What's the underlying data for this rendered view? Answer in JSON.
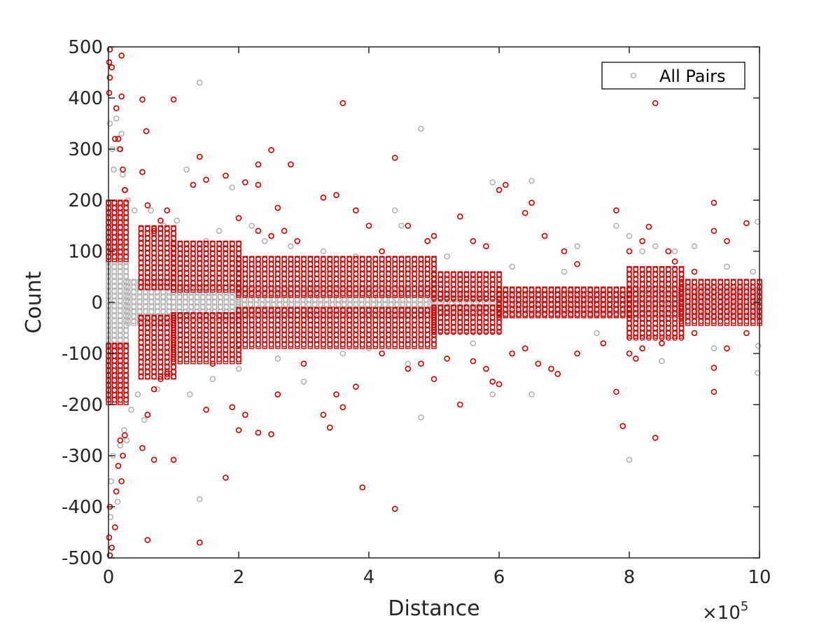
{
  "chart_data": {
    "type": "scatter",
    "title": "",
    "xlabel": "Distance",
    "ylabel": "Count",
    "x_multiplier_base": "×10",
    "x_multiplier_exp": "5",
    "xlim": [
      0,
      1000000
    ],
    "ylim": [
      -500,
      500
    ],
    "x_ticks": [
      {
        "value": 0,
        "label": "0"
      },
      {
        "value": 200000,
        "label": "2"
      },
      {
        "value": 400000,
        "label": "4"
      },
      {
        "value": 600000,
        "label": "6"
      },
      {
        "value": 800000,
        "label": "8"
      },
      {
        "value": 1000000,
        "label": "10"
      }
    ],
    "y_ticks": [
      {
        "value": 500,
        "label": "500"
      },
      {
        "value": 400,
        "label": "400"
      },
      {
        "value": 300,
        "label": "300"
      },
      {
        "value": 200,
        "label": "200"
      },
      {
        "value": 100,
        "label": "100"
      },
      {
        "value": 0,
        "label": "0"
      },
      {
        "value": -100,
        "label": "-100"
      },
      {
        "value": -200,
        "label": "-200"
      },
      {
        "value": -300,
        "label": "-300"
      },
      {
        "value": -400,
        "label": "-400"
      },
      {
        "value": -500,
        "label": "-500"
      }
    ],
    "grid": false,
    "legend_position": "top-right",
    "series": [
      {
        "name": "All Pairs",
        "color": "#b3b3b3",
        "marker": "open-circle",
        "points": [
          [
            2000,
            350
          ],
          [
            4000,
            -350
          ],
          [
            6000,
            300
          ],
          [
            3000,
            -420
          ],
          [
            8000,
            260
          ],
          [
            7000,
            -300
          ],
          [
            12000,
            360
          ],
          [
            14000,
            -390
          ],
          [
            16000,
            300
          ],
          [
            18000,
            -280
          ],
          [
            20000,
            330
          ],
          [
            22000,
            250
          ],
          [
            24000,
            -250
          ],
          [
            26000,
            220
          ],
          [
            28000,
            -270
          ],
          [
            30000,
            200
          ],
          [
            35000,
            -210
          ],
          [
            40000,
            180
          ],
          [
            45000,
            -180
          ],
          [
            55000,
            -230
          ],
          [
            65000,
            180
          ],
          [
            75000,
            -170
          ],
          [
            85000,
            150
          ],
          [
            95000,
            -140
          ],
          [
            105000,
            160
          ],
          [
            120000,
            260
          ],
          [
            125000,
            -180
          ],
          [
            140000,
            430
          ],
          [
            140000,
            -385
          ],
          [
            150000,
            120
          ],
          [
            160000,
            -150
          ],
          [
            170000,
            140
          ],
          [
            190000,
            225
          ],
          [
            200000,
            -130
          ],
          [
            220000,
            150
          ],
          [
            240000,
            120
          ],
          [
            260000,
            -110
          ],
          [
            280000,
            110
          ],
          [
            300000,
            -155
          ],
          [
            330000,
            100
          ],
          [
            360000,
            -100
          ],
          [
            380000,
            90
          ],
          [
            400000,
            -90
          ],
          [
            440000,
            180
          ],
          [
            450000,
            150
          ],
          [
            460000,
            -120
          ],
          [
            480000,
            340
          ],
          [
            480000,
            -225
          ],
          [
            520000,
            90
          ],
          [
            560000,
            -80
          ],
          [
            590000,
            235
          ],
          [
            590000,
            -180
          ],
          [
            620000,
            70
          ],
          [
            650000,
            238
          ],
          [
            650000,
            -180
          ],
          [
            700000,
            60
          ],
          [
            720000,
            110
          ],
          [
            750000,
            -60
          ],
          [
            780000,
            150
          ],
          [
            800000,
            130
          ],
          [
            800000,
            -308
          ],
          [
            820000,
            100
          ],
          [
            840000,
            110
          ],
          [
            850000,
            -115
          ],
          [
            870000,
            100
          ],
          [
            900000,
            110
          ],
          [
            930000,
            -90
          ],
          [
            950000,
            70
          ],
          [
            990000,
            60
          ],
          [
            997000,
            158
          ],
          [
            997000,
            -138
          ],
          [
            998000,
            -85
          ]
        ],
        "bands": [
          [
            0,
            30000,
            -85,
            85,
            9000
          ],
          [
            30000,
            100000,
            -45,
            45,
            9000
          ],
          [
            100000,
            200000,
            -35,
            35,
            9000
          ],
          [
            200000,
            500000,
            -30,
            30,
            9000
          ],
          [
            500000,
            800000,
            -22,
            22,
            9000
          ],
          [
            800000,
            1000000,
            -30,
            30,
            9000
          ]
        ]
      },
      {
        "name": "",
        "color": "#cc0000",
        "marker": "open-circle",
        "points": [
          [
            2000,
            495
          ],
          [
            1000,
            470
          ],
          [
            5000,
            460
          ],
          [
            2000,
            440
          ],
          [
            1000,
            410
          ],
          [
            20000,
            483
          ],
          [
            20000,
            403
          ],
          [
            10000,
            320
          ],
          [
            12000,
            380
          ],
          [
            15000,
            320
          ],
          [
            18000,
            300
          ],
          [
            22000,
            260
          ],
          [
            25000,
            220
          ],
          [
            52000,
            397
          ],
          [
            58000,
            335
          ],
          [
            100000,
            397
          ],
          [
            52000,
            255
          ],
          [
            60000,
            190
          ],
          [
            70000,
            140
          ],
          [
            80000,
            160
          ],
          [
            90000,
            180
          ],
          [
            140000,
            285
          ],
          [
            150000,
            240
          ],
          [
            130000,
            230
          ],
          [
            180000,
            248
          ],
          [
            210000,
            235
          ],
          [
            230000,
            270
          ],
          [
            230000,
            230
          ],
          [
            250000,
            298
          ],
          [
            260000,
            185
          ],
          [
            280000,
            270
          ],
          [
            200000,
            165
          ],
          [
            230000,
            140
          ],
          [
            250000,
            130
          ],
          [
            270000,
            140
          ],
          [
            290000,
            120
          ],
          [
            330000,
            205
          ],
          [
            350000,
            210
          ],
          [
            360000,
            390
          ],
          [
            380000,
            180
          ],
          [
            400000,
            150
          ],
          [
            420000,
            100
          ],
          [
            440000,
            283
          ],
          [
            460000,
            150
          ],
          [
            490000,
            120
          ],
          [
            500000,
            130
          ],
          [
            540000,
            168
          ],
          [
            560000,
            120
          ],
          [
            580000,
            110
          ],
          [
            600000,
            220
          ],
          [
            610000,
            230
          ],
          [
            640000,
            175
          ],
          [
            650000,
            195
          ],
          [
            670000,
            130
          ],
          [
            700000,
            100
          ],
          [
            720000,
            75
          ],
          [
            780000,
            180
          ],
          [
            800000,
            100
          ],
          [
            820000,
            120
          ],
          [
            840000,
            390
          ],
          [
            830000,
            148
          ],
          [
            860000,
            100
          ],
          [
            870000,
            80
          ],
          [
            900000,
            60
          ],
          [
            930000,
            195
          ],
          [
            930000,
            140
          ],
          [
            950000,
            120
          ],
          [
            980000,
            155
          ],
          [
            2000,
            -495
          ],
          [
            1000,
            -460
          ],
          [
            5000,
            -480
          ],
          [
            2000,
            -400
          ],
          [
            10000,
            -440
          ],
          [
            12000,
            -370
          ],
          [
            15000,
            -320
          ],
          [
            18000,
            -270
          ],
          [
            20000,
            -350
          ],
          [
            22000,
            -300
          ],
          [
            25000,
            -260
          ],
          [
            60000,
            -465
          ],
          [
            70000,
            -308
          ],
          [
            100000,
            -308
          ],
          [
            52000,
            -285
          ],
          [
            60000,
            -220
          ],
          [
            70000,
            -170
          ],
          [
            80000,
            -150
          ],
          [
            90000,
            -140
          ],
          [
            140000,
            -470
          ],
          [
            150000,
            -210
          ],
          [
            160000,
            -120
          ],
          [
            180000,
            -343
          ],
          [
            190000,
            -205
          ],
          [
            200000,
            -250
          ],
          [
            210000,
            -220
          ],
          [
            230000,
            -255
          ],
          [
            250000,
            -258
          ],
          [
            260000,
            -180
          ],
          [
            300000,
            -120
          ],
          [
            330000,
            -220
          ],
          [
            340000,
            -245
          ],
          [
            350000,
            -180
          ],
          [
            360000,
            -205
          ],
          [
            380000,
            -165
          ],
          [
            390000,
            -362
          ],
          [
            420000,
            -100
          ],
          [
            440000,
            -404
          ],
          [
            460000,
            -130
          ],
          [
            480000,
            -120
          ],
          [
            500000,
            -150
          ],
          [
            520000,
            -110
          ],
          [
            540000,
            -200
          ],
          [
            560000,
            -115
          ],
          [
            580000,
            -130
          ],
          [
            590000,
            -155
          ],
          [
            600000,
            -160
          ],
          [
            620000,
            -100
          ],
          [
            640000,
            -90
          ],
          [
            660000,
            -120
          ],
          [
            680000,
            -130
          ],
          [
            690000,
            -140
          ],
          [
            720000,
            -100
          ],
          [
            760000,
            -80
          ],
          [
            780000,
            -175
          ],
          [
            790000,
            -242
          ],
          [
            800000,
            -100
          ],
          [
            810000,
            -110
          ],
          [
            820000,
            -90
          ],
          [
            840000,
            -265
          ],
          [
            850000,
            -80
          ],
          [
            900000,
            -60
          ],
          [
            930000,
            -175
          ],
          [
            930000,
            -128
          ],
          [
            950000,
            -90
          ],
          [
            980000,
            -60
          ]
        ],
        "bands": [
          [
            0,
            30000,
            -200,
            -80,
            9000
          ],
          [
            0,
            30000,
            80,
            200,
            9000
          ],
          [
            50000,
            100000,
            -150,
            -25,
            10000
          ],
          [
            50000,
            100000,
            25,
            150,
            10000
          ],
          [
            100000,
            200000,
            -120,
            -20,
            10000
          ],
          [
            100000,
            200000,
            20,
            120,
            10000
          ],
          [
            200000,
            500000,
            -90,
            -10,
            10000
          ],
          [
            200000,
            500000,
            10,
            90,
            10000
          ],
          [
            500000,
            600000,
            -60,
            -5,
            10000
          ],
          [
            500000,
            600000,
            5,
            60,
            10000
          ],
          [
            600000,
            800000,
            -30,
            30,
            10000
          ],
          [
            800000,
            880000,
            -70,
            70,
            10000
          ],
          [
            880000,
            1000000,
            -45,
            45,
            10000
          ]
        ]
      }
    ]
  }
}
